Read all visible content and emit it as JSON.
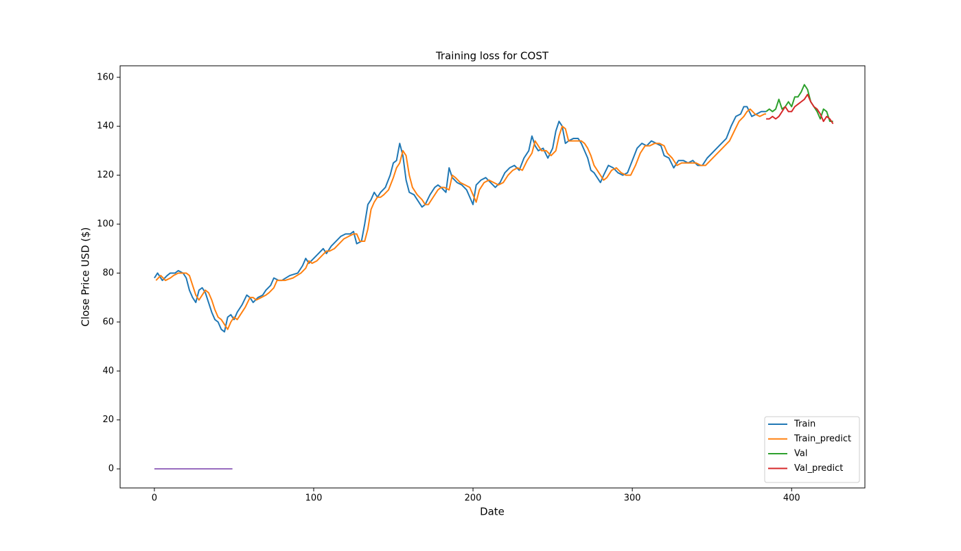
{
  "chart_data": {
    "type": "line",
    "title": "Training loss for COST",
    "xlabel": "Date",
    "ylabel": "Close Price USD ($)",
    "xlim": [
      -21.5,
      446
    ],
    "ylim": [
      -7.8,
      164.7
    ],
    "xticks": [
      0,
      100,
      200,
      300,
      400
    ],
    "yticks": [
      0,
      20,
      40,
      60,
      80,
      100,
      120,
      140,
      160
    ],
    "legend": "lower right",
    "series": [
      {
        "name": "Train",
        "color": "#1f77b4",
        "x": [
          0,
          2,
          5,
          8,
          10,
          13,
          15,
          18,
          20,
          22,
          24,
          26,
          28,
          30,
          32,
          34,
          36,
          38,
          40,
          42,
          44,
          46,
          48,
          50,
          52,
          55,
          58,
          60,
          62,
          65,
          68,
          70,
          73,
          75,
          78,
          80,
          85,
          90,
          93,
          95,
          97,
          100,
          103,
          106,
          108,
          111,
          114,
          117,
          120,
          123,
          125,
          127,
          130,
          132,
          134,
          136,
          138,
          140,
          142,
          145,
          148,
          150,
          152,
          154,
          156,
          158,
          160,
          163,
          166,
          168,
          170,
          173,
          176,
          178,
          180,
          183,
          185,
          187,
          190,
          193,
          196,
          198,
          200,
          202,
          205,
          208,
          211,
          214,
          217,
          220,
          223,
          226,
          229,
          232,
          235,
          237,
          239,
          241,
          244,
          247,
          250,
          252,
          254,
          256,
          258,
          260,
          263,
          266,
          268,
          270,
          272,
          274,
          276,
          278,
          280,
          282,
          285,
          288,
          291,
          294,
          297,
          300,
          303,
          306,
          309,
          312,
          315,
          318,
          320,
          323,
          326,
          329,
          332,
          335,
          338,
          341,
          344,
          347,
          350,
          353,
          356,
          359,
          362,
          365,
          368,
          370,
          372,
          375,
          378,
          381,
          384
        ],
        "values": [
          78,
          80,
          77,
          79,
          80,
          80,
          81,
          80,
          78,
          73,
          70,
          68,
          73,
          74,
          72,
          68,
          64,
          61,
          60,
          57,
          56,
          62,
          63,
          61,
          64,
          67,
          71,
          70,
          68,
          70,
          71,
          73,
          75,
          78,
          77,
          77,
          79,
          80,
          83,
          86,
          84,
          86,
          88,
          90,
          88,
          91,
          93,
          95,
          96,
          96,
          97,
          92,
          93,
          100,
          108,
          110,
          113,
          111,
          113,
          115,
          120,
          125,
          126,
          133,
          128,
          118,
          113,
          112,
          109,
          107,
          108,
          112,
          115,
          116,
          115,
          113,
          123,
          119,
          117,
          116,
          114,
          111,
          108,
          116,
          118,
          119,
          117,
          115,
          117,
          121,
          123,
          124,
          122,
          127,
          130,
          136,
          132,
          130,
          131,
          127,
          131,
          138,
          142,
          140,
          133,
          134,
          135,
          135,
          133,
          130,
          127,
          122,
          121,
          119,
          117,
          120,
          124,
          123,
          121,
          120,
          121,
          126,
          131,
          133,
          132,
          134,
          133,
          132,
          128,
          127,
          123,
          126,
          126,
          125,
          126,
          124,
          124,
          127,
          129,
          131,
          133,
          135,
          140,
          144,
          145,
          148,
          148,
          144,
          145,
          146,
          146
        ]
      },
      {
        "name": "Train_predict",
        "color": "#ff7f0e",
        "x": [
          1,
          4,
          7,
          10,
          12,
          15,
          17,
          20,
          22,
          24,
          26,
          28,
          30,
          32,
          34,
          36,
          38,
          40,
          42,
          44,
          46,
          48,
          50,
          52,
          54,
          57,
          60,
          62,
          64,
          67,
          70,
          72,
          75,
          77,
          80,
          82,
          87,
          92,
          95,
          97,
          99,
          102,
          105,
          108,
          110,
          113,
          116,
          119,
          122,
          125,
          127,
          129,
          132,
          134,
          136,
          138,
          140,
          142,
          144,
          147,
          150,
          152,
          154,
          156,
          158,
          160,
          162,
          165,
          168,
          170,
          172,
          175,
          178,
          180,
          182,
          185,
          187,
          189,
          192,
          195,
          198,
          200,
          202,
          204,
          207,
          210,
          213,
          216,
          219,
          222,
          225,
          228,
          231,
          234,
          237,
          239,
          241,
          243,
          246,
          249,
          252,
          254,
          256,
          258,
          260,
          262,
          265,
          268,
          270,
          272,
          274,
          276,
          278,
          280,
          282,
          284,
          287,
          290,
          293,
          296,
          299,
          302,
          305,
          308,
          311,
          314,
          317,
          320,
          322,
          325,
          328,
          331,
          334,
          337,
          340,
          343,
          346,
          349,
          352,
          355,
          358,
          361,
          364,
          367,
          370,
          372,
          374,
          377,
          380,
          383,
          384
        ],
        "values": [
          77,
          79,
          77,
          78,
          79,
          80,
          80,
          80,
          79,
          75,
          71,
          69,
          71,
          73,
          72,
          69,
          65,
          62,
          61,
          59,
          57,
          60,
          62,
          61,
          63,
          66,
          70,
          70,
          69,
          70,
          71,
          72,
          74,
          77,
          77,
          77,
          78,
          80,
          82,
          85,
          84,
          85,
          87,
          89,
          89,
          90,
          92,
          94,
          95,
          96,
          96,
          93,
          93,
          98,
          106,
          109,
          111,
          111,
          112,
          114,
          119,
          123,
          125,
          130,
          128,
          120,
          115,
          112,
          110,
          108,
          108,
          111,
          114,
          115,
          115,
          114,
          120,
          119,
          117,
          116,
          115,
          112,
          109,
          114,
          117,
          118,
          117,
          116,
          117,
          120,
          122,
          123,
          122,
          126,
          129,
          134,
          132,
          130,
          130,
          128,
          130,
          136,
          140,
          139,
          134,
          134,
          134,
          134,
          133,
          131,
          128,
          124,
          122,
          120,
          118,
          119,
          122,
          123,
          121,
          120,
          120,
          124,
          129,
          132,
          132,
          133,
          133,
          132,
          129,
          127,
          124,
          125,
          125,
          125,
          125,
          124,
          124,
          126,
          128,
          130,
          132,
          134,
          138,
          142,
          144,
          146,
          147,
          145,
          144,
          145,
          145
        ]
      },
      {
        "name": "Val",
        "color": "#2ca02c",
        "x": [
          384,
          386,
          388,
          390,
          392,
          394,
          396,
          398,
          400,
          402,
          404,
          406,
          408,
          410,
          412,
          414,
          416,
          418,
          420,
          422,
          424,
          426
        ],
        "values": [
          146,
          147,
          146,
          147,
          151,
          147,
          148,
          150,
          148,
          152,
          152,
          154,
          157,
          155,
          150,
          148,
          146,
          143,
          147,
          146,
          142,
          142
        ]
      },
      {
        "name": "Val_predict",
        "color": "#d62728",
        "x": [
          384,
          386,
          388,
          390,
          392,
          394,
          396,
          398,
          400,
          402,
          404,
          406,
          408,
          410,
          412,
          414,
          416,
          418,
          420,
          422,
          424,
          426
        ],
        "values": [
          143,
          143,
          144,
          143,
          144,
          146,
          148,
          146,
          146,
          148,
          149,
          150,
          151,
          153,
          150,
          148,
          147,
          145,
          142,
          144,
          143,
          141
        ]
      },
      {
        "color": "#9467bd",
        "x": [
          0,
          49
        ],
        "values": [
          0,
          0
        ]
      }
    ]
  }
}
